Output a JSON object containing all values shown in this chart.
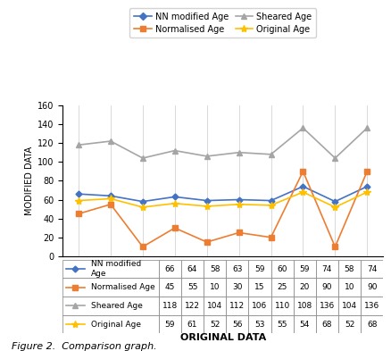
{
  "x_labels": [
    "59",
    "61",
    "52",
    "56",
    "53",
    "55",
    "54",
    "68",
    "52",
    "68"
  ],
  "x_values": [
    0,
    1,
    2,
    3,
    4,
    5,
    6,
    7,
    8,
    9
  ],
  "nn_modified": [
    66,
    64,
    58,
    63,
    59,
    60,
    59,
    74,
    58,
    74
  ],
  "normalised": [
    45,
    55,
    10,
    30,
    15,
    25,
    20,
    90,
    10,
    90
  ],
  "sheared": [
    118,
    122,
    104,
    112,
    106,
    110,
    108,
    136,
    104,
    136
  ],
  "original": [
    59,
    61,
    52,
    56,
    53,
    55,
    54,
    68,
    52,
    68
  ],
  "nn_color": "#4472C4",
  "normalised_color": "#ED7D31",
  "sheared_color": "#A5A5A5",
  "original_color": "#FFC000",
  "ylim": [
    0,
    160
  ],
  "yticks": [
    0,
    20,
    40,
    60,
    80,
    100,
    120,
    140,
    160
  ],
  "ylabel": "MODIFIED DATA",
  "xlabel": "ORIGINAL DATA",
  "legend_labels": [
    "NN modified Age",
    "Normalised Age",
    "Sheared Age",
    "Original Age"
  ],
  "table_row_labels": [
    "NN modified\nAge",
    "Normalised Age",
    "Sheared Age",
    "Original Age"
  ],
  "figure_caption": "Figure 2.  Comparison graph."
}
